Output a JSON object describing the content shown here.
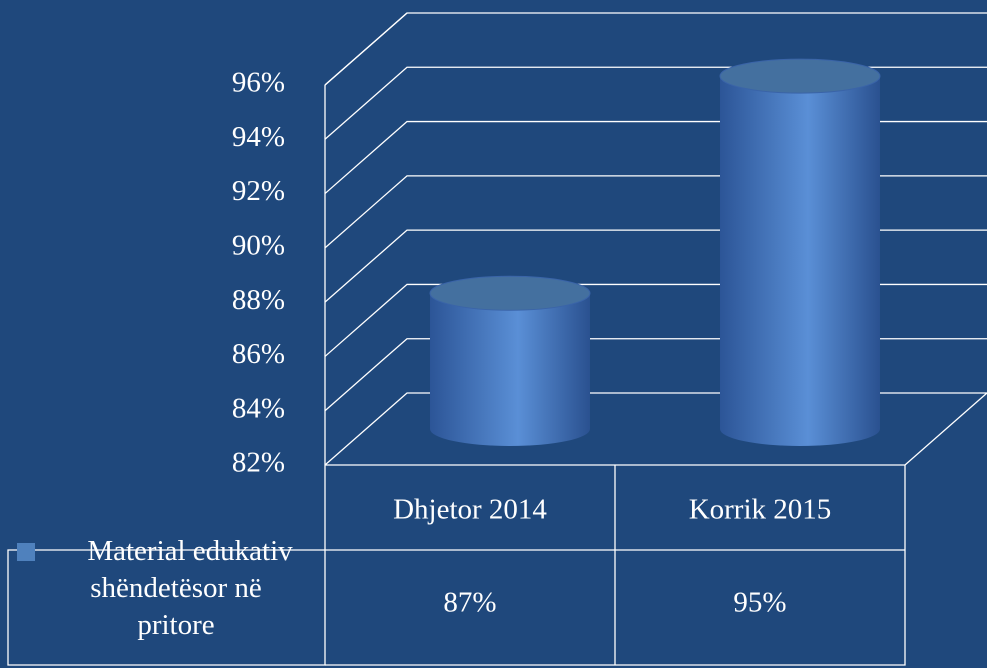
{
  "chart_data": {
    "type": "cylinder",
    "categories": [
      "Dhjetor 2014",
      "Korrik 2015"
    ],
    "series": [
      {
        "name": "Material edukativ shëndetësor në pritore",
        "color": "#4f81bd",
        "values": [
          87,
          95
        ],
        "value_labels": [
          "87%",
          "95%"
        ]
      }
    ],
    "ylim": [
      82,
      96
    ],
    "yticks": [
      {
        "value": 82,
        "label": "82%"
      },
      {
        "value": 84,
        "label": "84%"
      },
      {
        "value": 86,
        "label": "86%"
      },
      {
        "value": 88,
        "label": "88%"
      },
      {
        "value": 90,
        "label": "90%"
      },
      {
        "value": 92,
        "label": "92%"
      },
      {
        "value": 94,
        "label": "94%"
      },
      {
        "value": 96,
        "label": "96%"
      }
    ],
    "grid": true,
    "data_table": true
  }
}
